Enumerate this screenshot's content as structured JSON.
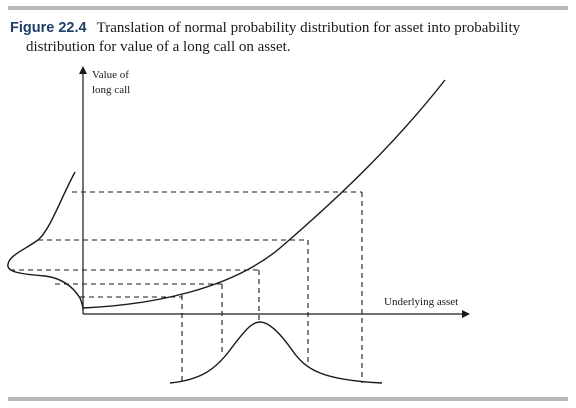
{
  "caption": {
    "label": "Figure 22.4",
    "text_line1": "Translation of normal probability distribution for asset into probability",
    "text_line2": "distribution for value of a long call on asset."
  },
  "axes": {
    "y_label_line1": "Value of",
    "y_label_line2": "long call",
    "x_label": "Underlying asset"
  },
  "colors": {
    "rule": "#b9b9b9",
    "figure_label": "#1f3f66",
    "ink": "#1a1a1a"
  }
}
